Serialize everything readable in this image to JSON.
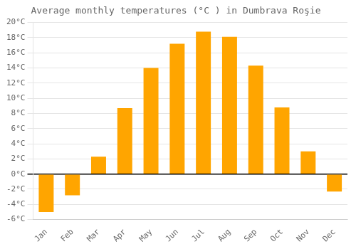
{
  "chart_data": {
    "type": "bar",
    "title": "Average monthly temperatures (°C ) in Dumbrava Roşie",
    "categories": [
      "Jan",
      "Feb",
      "Mar",
      "Apr",
      "May",
      "Jun",
      "Jul",
      "Aug",
      "Sep",
      "Oct",
      "Nov",
      "Dec"
    ],
    "values": [
      -5.0,
      -2.8,
      2.3,
      8.7,
      14.0,
      17.2,
      18.8,
      18.1,
      14.3,
      8.8,
      3.0,
      -2.3
    ],
    "color": "#FFA500",
    "ylim": [
      -6,
      20
    ],
    "yticks": [
      {
        "value": -6,
        "label": "-6°C"
      },
      {
        "value": -4,
        "label": "-4°C"
      },
      {
        "value": -2,
        "label": "-2°C"
      },
      {
        "value": 0,
        "label": "0°C"
      },
      {
        "value": 2,
        "label": "2°C"
      },
      {
        "value": 4,
        "label": "4°C"
      },
      {
        "value": 6,
        "label": "6°C"
      },
      {
        "value": 8,
        "label": "8°C"
      },
      {
        "value": 10,
        "label": "10°C"
      },
      {
        "value": 12,
        "label": "12°C"
      },
      {
        "value": 14,
        "label": "14°C"
      },
      {
        "value": 16,
        "label": "16°C"
      },
      {
        "value": 18,
        "label": "18°C"
      },
      {
        "value": 20,
        "label": "20°C"
      }
    ],
    "grid": true
  }
}
